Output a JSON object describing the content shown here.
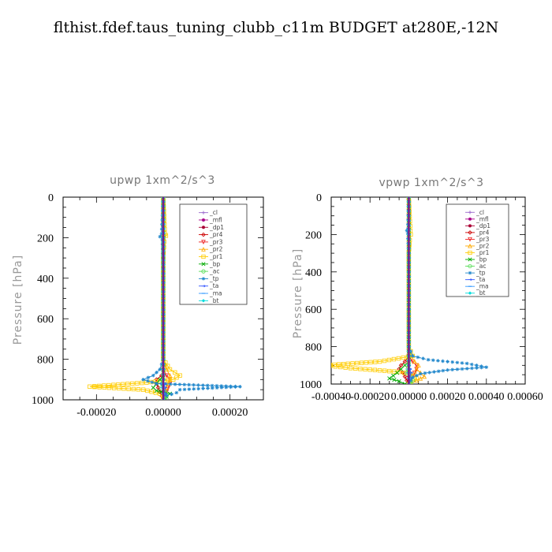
{
  "figure_title": "flthist.fdef.taus_tuning_clubb_c11m  BUDGET at280E,-12N",
  "chart_data": [
    {
      "type": "line",
      "title": "upwp   1xm^2/s^3",
      "ylabel": "Pressure [hPa]",
      "xlim": [
        -0.0003,
        0.0003
      ],
      "ylim": [
        1000,
        0
      ],
      "x_ticks": [
        -0.0002,
        0.0,
        0.0002
      ],
      "x_tick_labels": [
        "-0.00020",
        "0.00000",
        "0.00020"
      ],
      "y_ticks": [
        0,
        200,
        400,
        600,
        800,
        1000
      ],
      "y_tick_labels": [
        "0",
        "200",
        "400",
        "600",
        "800",
        "1000"
      ],
      "legend_position": "upper-right",
      "series": [
        {
          "name": "_cl",
          "color": "#9966cc",
          "marker": "+",
          "y": [
            0,
            200,
            400,
            600,
            800,
            850,
            880,
            900,
            920,
            940,
            960,
            980,
            1000
          ],
          "x": [
            0,
            0,
            0,
            0,
            0,
            0,
            0,
            0,
            0,
            0,
            0,
            0,
            0
          ]
        },
        {
          "name": "_mfl",
          "color": "#aa0088",
          "marker": "dot",
          "y": [
            0,
            200,
            400,
            600,
            800,
            850,
            880,
            900,
            920,
            940,
            960,
            980,
            1000
          ],
          "x": [
            0,
            0,
            0,
            0,
            0,
            0,
            0,
            0,
            0,
            0,
            0,
            0,
            0
          ]
        },
        {
          "name": "_dp1",
          "color": "#aa0033",
          "marker": "dot",
          "y": [
            0,
            200,
            400,
            600,
            800,
            850,
            880,
            900,
            920,
            940,
            960,
            980,
            1000
          ],
          "x": [
            0,
            0,
            0,
            0,
            0,
            0,
            0,
            0,
            0,
            0,
            0,
            0,
            0
          ]
        },
        {
          "name": "_pr4",
          "color": "#cc0000",
          "marker": "diamond",
          "y": [
            0,
            200,
            400,
            600,
            800,
            850,
            880,
            900,
            920,
            940,
            960,
            980,
            1000
          ],
          "x": [
            0,
            0,
            0,
            0,
            0,
            0,
            -5e-06,
            -2e-05,
            -2e-05,
            -1.5e-05,
            -1e-05,
            -5e-06,
            0
          ]
        },
        {
          "name": "_pr3",
          "color": "#ee2222",
          "marker": "triangle-down",
          "y": [
            0,
            200,
            400,
            600,
            800,
            850,
            880,
            900,
            920,
            940,
            960,
            980,
            1000
          ],
          "x": [
            0,
            0,
            0,
            0,
            0,
            0,
            1e-05,
            2e-05,
            2e-05,
            1.5e-05,
            1e-05,
            5e-06,
            0
          ]
        },
        {
          "name": "_pr2",
          "color": "#ffaa00",
          "marker": "triangle-up",
          "y": [
            0,
            200,
            400,
            600,
            800,
            850,
            880,
            900,
            920,
            940,
            960,
            980,
            1000
          ],
          "x": [
            0,
            0,
            0,
            0,
            0,
            1e-05,
            2e-05,
            2e-05,
            1.5e-05,
            1e-05,
            5e-06,
            0,
            0
          ]
        },
        {
          "name": "_pr1",
          "color": "#ffcc00",
          "marker": "square",
          "y": [
            0,
            180,
            190,
            220,
            300,
            400,
            600,
            800,
            850,
            880,
            900,
            915,
            935,
            950,
            970,
            990,
            1000
          ],
          "x": [
            0,
            5e-06,
            8e-06,
            3e-06,
            0,
            0,
            0,
            0,
            2e-05,
            5e-05,
            3e-05,
            -5e-05,
            -0.00022,
            -6e-05,
            -1e-05,
            0,
            0
          ]
        },
        {
          "name": "_bp",
          "color": "#00aa00",
          "marker": "x",
          "y": [
            0,
            200,
            400,
            600,
            800,
            880,
            900,
            920,
            940,
            955,
            970,
            985,
            1000
          ],
          "x": [
            0,
            0,
            0,
            0,
            0,
            0,
            -1e-05,
            -2e-05,
            -3e-05,
            -2e-05,
            2e-05,
            1e-05,
            5e-06
          ]
        },
        {
          "name": "_ac",
          "color": "#55dd55",
          "marker": "circle",
          "y": [
            0,
            200,
            400,
            600,
            800,
            900,
            940,
            960,
            980,
            1000
          ],
          "x": [
            0,
            0,
            0,
            0,
            0,
            0,
            -5e-06,
            5e-06,
            1e-05,
            5e-06
          ]
        },
        {
          "name": "_tp",
          "color": "#2288cc",
          "marker": "asterisk",
          "y": [
            0,
            180,
            195,
            210,
            300,
            400,
            600,
            800,
            850,
            880,
            900,
            920,
            935,
            950,
            965,
            980,
            1000
          ],
          "x": [
            0,
            -5e-06,
            -1e-05,
            -3e-06,
            0,
            0,
            0,
            0,
            -1e-05,
            -3e-05,
            -6e-05,
            -2e-05,
            0.00023,
            5e-05,
            4e-05,
            1e-05,
            0
          ]
        },
        {
          "name": "_ta",
          "color": "#3355ff",
          "marker": "arrow",
          "y": [
            0,
            200,
            400,
            600,
            800,
            900,
            940,
            970,
            1000
          ],
          "x": [
            0,
            0,
            0,
            0,
            0,
            0,
            5e-06,
            5e-06,
            0
          ]
        },
        {
          "name": "_ma",
          "color": "#3399ff",
          "marker": "dash",
          "y": [
            0,
            200,
            400,
            600,
            800,
            900,
            940,
            970,
            1000
          ],
          "x": [
            0,
            0,
            0,
            0,
            0,
            0,
            -3e-06,
            0,
            0
          ]
        },
        {
          "name": "_bt",
          "color": "#00dddd",
          "marker": "diamond-filled",
          "y": [
            0,
            200,
            400,
            600,
            800,
            900,
            940,
            970,
            1000
          ],
          "x": [
            0,
            0,
            0,
            0,
            0,
            0,
            0,
            0,
            0
          ]
        }
      ]
    },
    {
      "type": "line",
      "title": "vpwp   1xm^2/s^3",
      "ylabel": "Pressure [hPa]",
      "xlim": [
        -0.0004,
        0.0006
      ],
      "ylim": [
        1000,
        0
      ],
      "x_ticks": [
        -0.0004,
        -0.0002,
        0.0,
        0.0002,
        0.0004,
        0.0006
      ],
      "x_tick_labels": [
        "-0.00040",
        "-0.00020",
        "0.00000",
        "0.00020",
        "0.00040",
        "0.00060"
      ],
      "y_ticks": [
        0,
        200,
        400,
        600,
        800,
        1000
      ],
      "y_tick_labels": [
        "0",
        "200",
        "400",
        "600",
        "800",
        "1000"
      ],
      "legend_position": "upper-right",
      "series": [
        {
          "name": "_cl",
          "color": "#9966cc",
          "marker": "+",
          "y": [
            0,
            200,
            400,
            600,
            800,
            850,
            880,
            900,
            920,
            940,
            960,
            980,
            1000
          ],
          "x": [
            0,
            0,
            0,
            0,
            0,
            0,
            0,
            0,
            0,
            0,
            0,
            0,
            0
          ]
        },
        {
          "name": "_mfl",
          "color": "#aa0088",
          "marker": "dot",
          "y": [
            0,
            200,
            400,
            600,
            800,
            850,
            880,
            900,
            920,
            940,
            960,
            980,
            1000
          ],
          "x": [
            0,
            0,
            0,
            0,
            0,
            0,
            0,
            0,
            0,
            0,
            0,
            0,
            0
          ]
        },
        {
          "name": "_dp1",
          "color": "#aa0033",
          "marker": "dot",
          "y": [
            0,
            200,
            400,
            600,
            800,
            850,
            880,
            900,
            920,
            940,
            960,
            980,
            1000
          ],
          "x": [
            0,
            0,
            0,
            0,
            0,
            0,
            0,
            0,
            0,
            0,
            0,
            0,
            0
          ]
        },
        {
          "name": "_pr4",
          "color": "#cc0000",
          "marker": "diamond",
          "y": [
            0,
            200,
            400,
            600,
            800,
            850,
            880,
            900,
            920,
            940,
            960,
            980,
            1000
          ],
          "x": [
            0,
            0,
            0,
            0,
            0,
            0,
            -2e-05,
            -4e-05,
            -5e-05,
            -3e-05,
            -2e-05,
            -1e-05,
            0
          ]
        },
        {
          "name": "_pr3",
          "color": "#ee2222",
          "marker": "triangle-down",
          "y": [
            0,
            200,
            400,
            600,
            800,
            850,
            880,
            900,
            920,
            940,
            960,
            980,
            1000
          ],
          "x": [
            0,
            0,
            0,
            0,
            0,
            0,
            2e-05,
            4e-05,
            4e-05,
            3e-05,
            2e-05,
            1e-05,
            0
          ]
        },
        {
          "name": "_pr2",
          "color": "#ffaa00",
          "marker": "triangle-up",
          "y": [
            0,
            200,
            400,
            600,
            800,
            850,
            880,
            900,
            920,
            940,
            960,
            980,
            1000
          ],
          "x": [
            0,
            0,
            0,
            0,
            0,
            1e-05,
            3e-05,
            5e-05,
            4e-05,
            6e-05,
            8e-05,
            4e-05,
            1e-05
          ]
        },
        {
          "name": "_pr1",
          "color": "#ffcc00",
          "marker": "square",
          "y": [
            0,
            180,
            200,
            230,
            300,
            400,
            600,
            800,
            850,
            880,
            900,
            915,
            935,
            950,
            970,
            990,
            1000
          ],
          "x": [
            0,
            8e-06,
            1e-05,
            5e-06,
            0,
            0,
            0,
            0,
            2e-05,
            -0.00015,
            -0.00043,
            -0.0003,
            -5e-05,
            3e-05,
            4e-05,
            1e-05,
            0
          ]
        },
        {
          "name": "_bp",
          "color": "#00aa00",
          "marker": "x",
          "y": [
            0,
            200,
            400,
            600,
            800,
            880,
            900,
            920,
            940,
            955,
            970,
            985,
            1000
          ],
          "x": [
            0,
            0,
            0,
            0,
            0,
            0,
            -2e-05,
            -4e-05,
            -6e-05,
            -8e-05,
            -0.0001,
            -5e-05,
            -2e-05
          ]
        },
        {
          "name": "_ac",
          "color": "#55dd55",
          "marker": "circle",
          "y": [
            0,
            200,
            400,
            600,
            800,
            900,
            940,
            960,
            980,
            1000
          ],
          "x": [
            0,
            0,
            0,
            0,
            0,
            0,
            -1e-05,
            1e-05,
            2e-05,
            1e-05
          ]
        },
        {
          "name": "_tp",
          "color": "#2288cc",
          "marker": "asterisk",
          "y": [
            0,
            170,
            180,
            195,
            300,
            400,
            600,
            800,
            850,
            870,
            890,
            910,
            925,
            945,
            965,
            980,
            1000
          ],
          "x": [
            0,
            -5e-06,
            -1e-05,
            -5e-06,
            0,
            0,
            0,
            0,
            2e-05,
            0.0001,
            0.0003,
            0.0004,
            0.0002,
            6e-05,
            2e-05,
            1e-05,
            0
          ]
        },
        {
          "name": "_ta",
          "color": "#3355ff",
          "marker": "arrow",
          "y": [
            0,
            200,
            400,
            600,
            800,
            900,
            940,
            970,
            1000
          ],
          "x": [
            0,
            0,
            0,
            0,
            0,
            0,
            1e-05,
            5e-06,
            0
          ]
        },
        {
          "name": "_ma",
          "color": "#3399ff",
          "marker": "dash",
          "y": [
            0,
            200,
            400,
            600,
            800,
            900,
            940,
            970,
            1000
          ],
          "x": [
            0,
            0,
            0,
            0,
            0,
            0,
            -5e-06,
            0,
            0
          ]
        },
        {
          "name": "_bt",
          "color": "#00dddd",
          "marker": "diamond-filled",
          "y": [
            0,
            200,
            400,
            600,
            800,
            900,
            940,
            970,
            1000
          ],
          "x": [
            0,
            0,
            0,
            0,
            0,
            0,
            0,
            0,
            0
          ]
        }
      ]
    }
  ]
}
